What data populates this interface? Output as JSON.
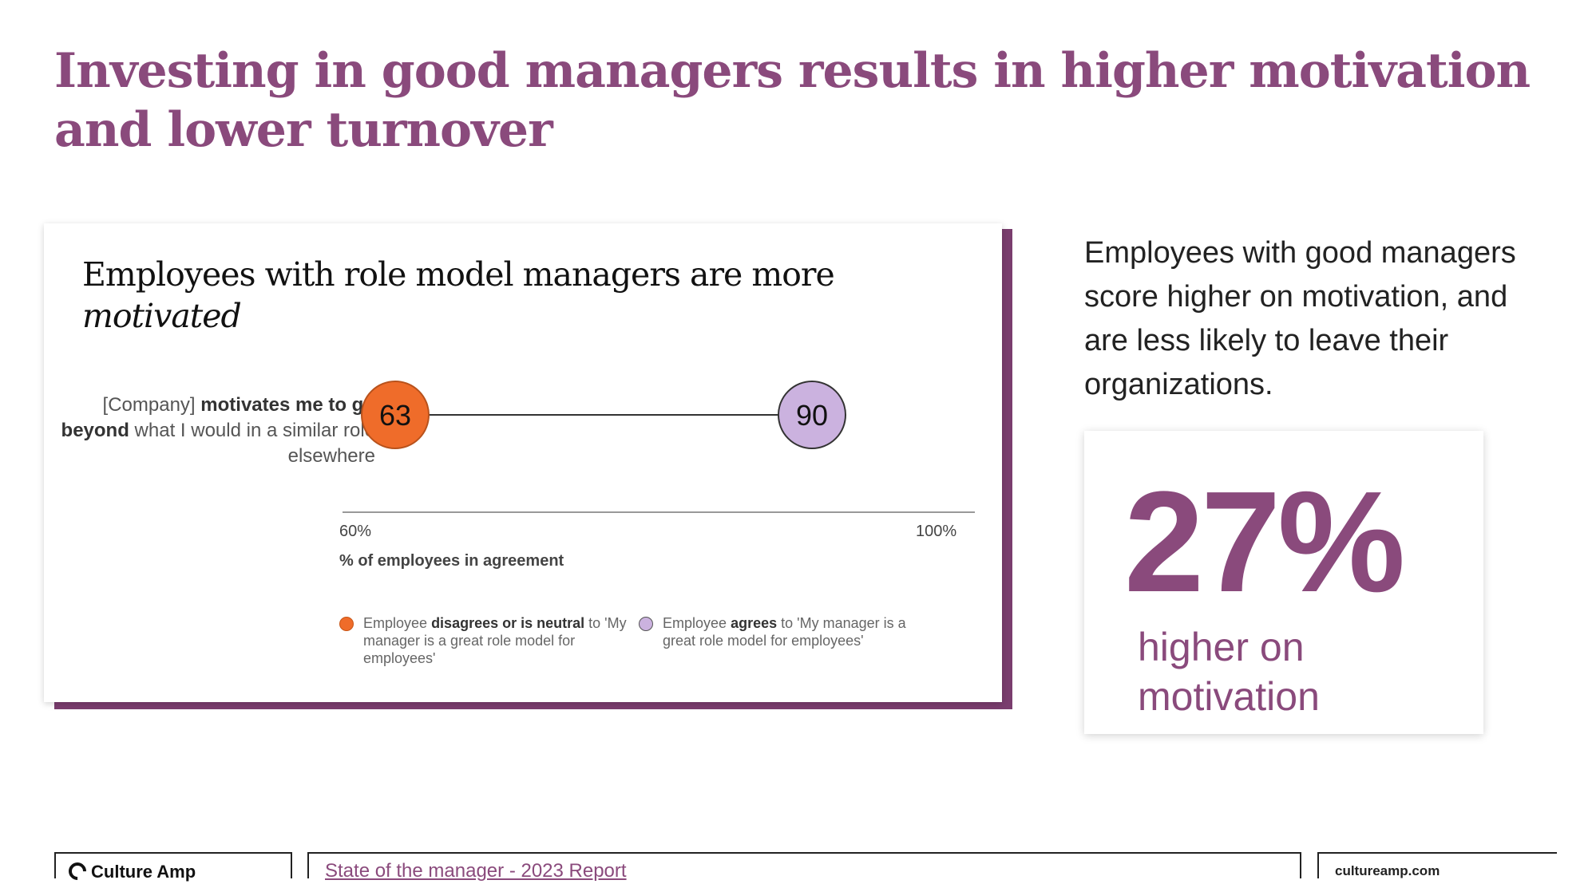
{
  "title": "Investing in good managers results in higher motivation and lower turnover",
  "card": {
    "heading_prefix": "Employees with role model managers are more",
    "heading_accent": "motivated",
    "question_pre": "[Company]",
    "question_bold1": "motivates me to go beyond",
    "question_post": "what I would in a similar role elsewhere"
  },
  "chart_data": {
    "type": "dumbbell",
    "title": "Employees with role model managers are more motivated",
    "xlabel": "% of employees in agreement",
    "xlim": [
      60,
      100
    ],
    "x_ticks": [
      "60%",
      "100%"
    ],
    "categories": [
      "[Company] motivates me to go beyond what I would in a similar role elsewhere"
    ],
    "series": [
      {
        "name": "Employee disagrees or is neutral to 'My manager is a great role model for employees'",
        "values": [
          63
        ],
        "color": "#ef6c2a"
      },
      {
        "name": "Employee agrees to 'My manager is a great role model for employees'",
        "values": [
          90
        ],
        "color": "#cbb2df"
      }
    ],
    "grid": false,
    "legend_position": "bottom"
  },
  "legend": {
    "item1_pre": "Employee",
    "item1_bold": "disagrees or is neutral",
    "item1_post": "to 'My manager is a great role model for employees'",
    "item2_pre": "Employee",
    "item2_bold": "agrees",
    "item2_post": "to 'My manager is a great role model for employees'"
  },
  "side": {
    "text": "Employees with good managers score higher on motivation, and are less likely to leave their organizations.",
    "stat_value": "27%",
    "stat_label": "higher on motivation"
  },
  "footer": {
    "logo": "Culture Amp",
    "report_link": "State of the manager - 2023 Report",
    "site": "cultureamp.com"
  },
  "colors": {
    "accent": "#8a4a7c",
    "orange": "#ef6c2a",
    "lavender": "#cbb2df"
  }
}
